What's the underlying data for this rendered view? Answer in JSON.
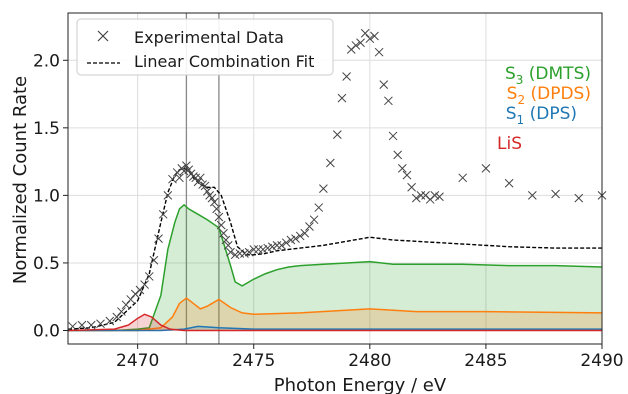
{
  "chart_data": {
    "type": "line",
    "xlabel": "Photon Energy / eV",
    "ylabel": "Normalized Count Rate",
    "xlim": [
      2467,
      2490
    ],
    "ylim": [
      -0.1,
      2.35
    ],
    "xticks": [
      2470,
      2475,
      2480,
      2485,
      2490
    ],
    "yticks": [
      0.0,
      0.5,
      1.0,
      1.5,
      2.0
    ],
    "xtick_labels": [
      "2470",
      "2475",
      "2480",
      "2485",
      "2490"
    ],
    "ytick_labels": [
      "0.0",
      "0.5",
      "1.0",
      "1.5",
      "2.0"
    ],
    "grid": true,
    "legend_position": "top-left",
    "vertical_lines": [
      2472.1,
      2473.5
    ],
    "legend": [
      {
        "label": "Experimental Data",
        "marker": "x",
        "color": "#444444"
      },
      {
        "label": "Linear Combination Fit",
        "style": "dashed",
        "color": "#000000"
      }
    ],
    "annotations": [
      {
        "main": "S",
        "sub": "3",
        "rest": " (DMTS)",
        "color": "#2ca02c"
      },
      {
        "main": "S",
        "sub": "2",
        "rest": " (DPDS)",
        "color": "#ff7f0e"
      },
      {
        "main": "S",
        "sub": "1",
        "rest": " (DPS)",
        "color": "#1f77b4"
      },
      {
        "main": "LiS",
        "sub": "",
        "rest": "",
        "color": "#d62728"
      }
    ],
    "series": [
      {
        "name": "Experimental Data",
        "kind": "scatter",
        "color": "#444444",
        "x": [
          2467.2,
          2467.6,
          2468.0,
          2468.4,
          2468.8,
          2469.1,
          2469.3,
          2469.5,
          2469.7,
          2469.9,
          2470.1,
          2470.3,
          2470.5,
          2470.7,
          2470.9,
          2471.1,
          2471.3,
          2471.5,
          2471.7,
          2471.8,
          2471.9,
          2472.0,
          2472.1,
          2472.2,
          2472.3,
          2472.4,
          2472.5,
          2472.6,
          2472.7,
          2472.8,
          2472.9,
          2473.0,
          2473.1,
          2473.2,
          2473.3,
          2473.4,
          2473.5,
          2473.6,
          2473.7,
          2473.8,
          2473.9,
          2474.0,
          2474.2,
          2474.4,
          2474.6,
          2474.8,
          2475.0,
          2475.2,
          2475.4,
          2475.6,
          2475.8,
          2476.0,
          2476.2,
          2476.4,
          2476.6,
          2476.8,
          2477.0,
          2477.2,
          2477.4,
          2477.6,
          2477.8,
          2478.0,
          2478.3,
          2478.6,
          2478.8,
          2479.0,
          2479.2,
          2479.4,
          2479.6,
          2479.8,
          2480.0,
          2480.2,
          2480.4,
          2480.6,
          2480.8,
          2481.0,
          2481.2,
          2481.4,
          2481.6,
          2481.8,
          2482.0,
          2482.2,
          2482.4,
          2482.6,
          2482.8,
          2483.0,
          2484.0,
          2485.0,
          2486.0,
          2487.0,
          2488.0,
          2489.0,
          2490.0
        ],
        "y": [
          0.03,
          0.04,
          0.04,
          0.05,
          0.07,
          0.1,
          0.14,
          0.19,
          0.23,
          0.27,
          0.3,
          0.34,
          0.4,
          0.52,
          0.68,
          0.86,
          1.0,
          1.12,
          1.17,
          1.13,
          1.2,
          1.18,
          1.22,
          1.19,
          1.16,
          1.14,
          1.13,
          1.1,
          1.13,
          1.08,
          1.07,
          1.03,
          1.0,
          0.98,
          0.95,
          0.9,
          0.84,
          0.78,
          0.72,
          0.67,
          0.63,
          0.58,
          0.56,
          0.57,
          0.57,
          0.58,
          0.6,
          0.6,
          0.6,
          0.61,
          0.62,
          0.63,
          0.63,
          0.65,
          0.67,
          0.68,
          0.7,
          0.72,
          0.77,
          0.82,
          0.91,
          1.05,
          1.24,
          1.45,
          1.72,
          1.88,
          2.08,
          2.11,
          2.13,
          2.2,
          2.16,
          2.18,
          2.06,
          1.82,
          1.7,
          1.44,
          1.3,
          1.2,
          1.15,
          1.06,
          0.98,
          1.0,
          1.0,
          0.97,
          1.0,
          0.99,
          1.13,
          1.2,
          1.09,
          1.0,
          1.01,
          0.98,
          1.0
        ]
      },
      {
        "name": "Linear Combination Fit",
        "kind": "line",
        "color": "#000000",
        "dashed": true,
        "x": [
          2467.0,
          2468.0,
          2469.0,
          2469.5,
          2470.0,
          2470.5,
          2471.0,
          2471.3,
          2471.6,
          2471.8,
          2472.0,
          2472.2,
          2472.4,
          2472.7,
          2473.0,
          2473.3,
          2473.6,
          2474.0,
          2474.3,
          2474.7,
          2475.0,
          2475.5,
          2476.0,
          2477.0,
          2478.0,
          2479.0,
          2480.0,
          2481.0,
          2482.0,
          2484.0,
          2486.0,
          2488.0,
          2490.0
        ],
        "y": [
          0.01,
          0.02,
          0.06,
          0.14,
          0.22,
          0.42,
          0.8,
          1.02,
          1.15,
          1.19,
          1.2,
          1.18,
          1.13,
          1.08,
          1.06,
          1.06,
          1.0,
          0.8,
          0.62,
          0.56,
          0.56,
          0.57,
          0.59,
          0.61,
          0.63,
          0.66,
          0.69,
          0.67,
          0.66,
          0.64,
          0.62,
          0.61,
          0.61
        ]
      },
      {
        "name": "",
        "kind": "area",
        "color": "#2ca02c",
        "fill": "#2ca02c",
        "x": [
          2467.0,
          2469.0,
          2470.0,
          2470.5,
          2471.0,
          2471.3,
          2471.6,
          2471.8,
          2472.0,
          2472.2,
          2472.5,
          2473.0,
          2473.5,
          2474.0,
          2474.2,
          2474.5,
          2475.0,
          2475.5,
          2476.0,
          2476.5,
          2477.0,
          2478.0,
          2479.0,
          2480.0,
          2481.0,
          2482.0,
          2484.0,
          2486.0,
          2488.0,
          2490.0
        ],
        "y": [
          0.0,
          0.0,
          0.01,
          0.02,
          0.26,
          0.6,
          0.8,
          0.9,
          0.93,
          0.9,
          0.87,
          0.82,
          0.76,
          0.48,
          0.36,
          0.33,
          0.38,
          0.42,
          0.45,
          0.47,
          0.48,
          0.49,
          0.5,
          0.51,
          0.49,
          0.49,
          0.49,
          0.48,
          0.48,
          0.47
        ]
      },
      {
        "name": "",
        "kind": "area",
        "color": "#ff7f0e",
        "fill": "#ff7f0e",
        "x": [
          2467.0,
          2470.0,
          2471.0,
          2471.5,
          2471.8,
          2472.1,
          2472.4,
          2472.7,
          2473.0,
          2473.5,
          2474.0,
          2474.5,
          2475.0,
          2477.0,
          2480.0,
          2482.0,
          2485.0,
          2490.0
        ],
        "y": [
          0.0,
          0.0,
          0.02,
          0.1,
          0.2,
          0.24,
          0.2,
          0.16,
          0.18,
          0.23,
          0.17,
          0.13,
          0.12,
          0.13,
          0.16,
          0.14,
          0.14,
          0.13
        ]
      },
      {
        "name": "",
        "kind": "area",
        "color": "#1f77b4",
        "fill": "#1f77b4",
        "x": [
          2467.0,
          2471.0,
          2472.0,
          2472.6,
          2473.5,
          2475.0,
          2480.0,
          2490.0
        ],
        "y": [
          0.0,
          0.0,
          0.01,
          0.03,
          0.02,
          0.01,
          0.01,
          0.01
        ]
      },
      {
        "name": "",
        "kind": "area",
        "color": "#d62728",
        "fill": "#d62728",
        "x": [
          2467.0,
          2469.0,
          2469.6,
          2470.0,
          2470.3,
          2470.6,
          2471.0,
          2471.4,
          2472.0,
          2490.0
        ],
        "y": [
          0.0,
          0.01,
          0.04,
          0.09,
          0.12,
          0.1,
          0.04,
          0.01,
          0.0,
          0.0
        ]
      }
    ]
  }
}
